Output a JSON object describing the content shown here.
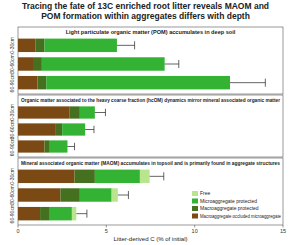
{
  "chart_data": [
    {
      "type": "bar",
      "orientation": "horizontal",
      "stacked": true,
      "tick_labels": "y",
      "grid": false,
      "title": "Tracing the fate of 13C enriched root litter reveals MAOM and POM formation within aggregates differs with depth",
      "subtitle": "Light particulate organic matter (POM) accumulates in deep soil",
      "categories": [
        "0-30cm",
        "30-60cm",
        "60-90cm"
      ],
      "xlim": [
        0,
        15
      ],
      "xticks": [
        0,
        5,
        10,
        15
      ],
      "series": [
        {
          "name": "Macroaggregate occluded microaggregate",
          "color": "#7b4a14",
          "values": [
            1.0,
            0.85,
            1.1
          ]
        },
        {
          "name": "Macroaggregate protected",
          "color": "#44701f",
          "values": [
            0.5,
            0.5,
            0.5
          ]
        },
        {
          "name": "Microaggregate protected",
          "color": "#33b233",
          "values": [
            4.1,
            6.95,
            10.4
          ]
        },
        {
          "name": "Free",
          "color": "#b9e58f",
          "values": [
            0,
            0,
            0
          ]
        }
      ],
      "errors": [
        1.0,
        0.8,
        2.0
      ]
    },
    {
      "type": "bar",
      "orientation": "horizontal",
      "stacked": true,
      "tick_labels": "y",
      "grid": false,
      "subtitle": "Organic matter associated to the heavy coarse fraction (hcOM) dynamics mirror mineral associated organic matter",
      "categories": [
        "0-30cm",
        "30-60cm",
        "60-90cm"
      ],
      "xlim": [
        0,
        15
      ],
      "xticks": [
        0,
        5,
        10,
        15
      ],
      "series": [
        {
          "name": "Macroaggregate occluded microaggregate",
          "color": "#7b4a14",
          "values": [
            2.9,
            2.1,
            1.5
          ]
        },
        {
          "name": "Macroaggregate protected",
          "color": "#44701f",
          "values": [
            0.6,
            0.4,
            0.3
          ]
        },
        {
          "name": "Microaggregate protected",
          "color": "#33b233",
          "values": [
            0.85,
            1.3,
            1.0
          ]
        },
        {
          "name": "Free",
          "color": "#b9e58f",
          "values": [
            0,
            0,
            0
          ]
        }
      ],
      "errors": [
        0.6,
        0.5,
        0.4
      ]
    },
    {
      "type": "bar",
      "orientation": "horizontal",
      "stacked": true,
      "grid": false,
      "legend": "lower right",
      "subtitle": "Mineral associated organic matter (MAOM) accumulates in topsoil and is primarily found in aggregate structures",
      "categories": [
        "0-30cm",
        "30-60cm",
        "60-90cm"
      ],
      "xlabel": "Litter-derived C (% of initial)",
      "xlim": [
        0,
        15
      ],
      "xticks": [
        0,
        5,
        10,
        15
      ],
      "series": [
        {
          "name": "Macroaggregate occluded microaggregate",
          "color": "#7b4a14",
          "values": [
            3.2,
            2.4,
            1.25
          ]
        },
        {
          "name": "Macroaggregate protected",
          "color": "#44701f",
          "values": [
            1.15,
            1.1,
            0.55
          ]
        },
        {
          "name": "Microaggregate protected",
          "color": "#33b233",
          "values": [
            2.55,
            1.8,
            1.25
          ]
        },
        {
          "name": "Free",
          "color": "#b9e58f",
          "values": [
            0.55,
            0.35,
            0.25
          ]
        }
      ],
      "errors": [
        0.8,
        0.6,
        0.6
      ]
    }
  ]
}
